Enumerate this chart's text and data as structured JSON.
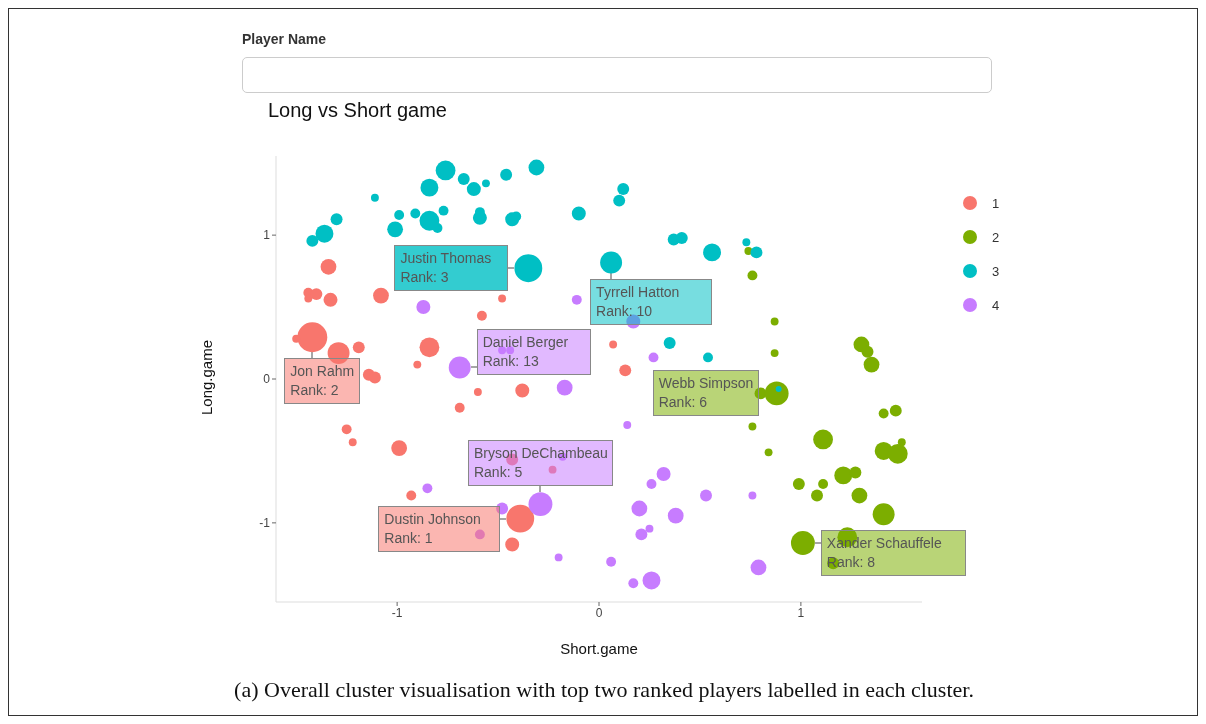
{
  "chart_data": {
    "type": "bubble",
    "title": "Long vs Short game",
    "xlabel": "Short.game",
    "ylabel": "Long.game",
    "xlim": [
      -1.6,
      1.6
    ],
    "ylim": [
      -1.55,
      1.55
    ],
    "xticks": [
      -1,
      0,
      1
    ],
    "yticks": [
      -1,
      0,
      1
    ],
    "legend": "top right",
    "series": [
      {
        "name": "1",
        "color": "#f8766d",
        "x": [
          -1.34,
          -1.44,
          -1.4,
          -1.44,
          -1.33,
          -1.08,
          -0.48,
          -0.58,
          -1.42,
          -1.5,
          -1.29,
          -1.19,
          -0.84,
          -0.9,
          -1.14,
          -1.11,
          0.07,
          0.13,
          -0.38,
          -0.6,
          -0.69,
          -1.25,
          -1.22,
          -0.99,
          -0.93,
          -0.43,
          -0.23,
          -0.39,
          -0.43
        ],
        "values": [
          0.78,
          0.6,
          0.59,
          0.56,
          0.55,
          0.58,
          0.56,
          0.44,
          0.29,
          0.28,
          0.18,
          0.22,
          0.22,
          0.1,
          0.03,
          0.01,
          0.24,
          0.06,
          -0.08,
          -0.09,
          -0.2,
          -0.35,
          -0.44,
          -0.48,
          -0.81,
          -0.56,
          -0.63,
          -0.97,
          -1.15
        ],
        "sizes": [
          0.28,
          0.11,
          0.16,
          0.07,
          0.22,
          0.28,
          0.07,
          0.11,
          1,
          0.07,
          0.54,
          0.16,
          0.44,
          0.07,
          0.16,
          0.16,
          0.07,
          0.16,
          0.22,
          0.07,
          0.11,
          0.11,
          0.07,
          0.28,
          0.11,
          0.16,
          0.07,
          0.87,
          0.22
        ]
      },
      {
        "name": "2",
        "color": "#7cae00",
        "x": [
          0.74,
          0.76,
          0.87,
          0.87,
          1.3,
          1.33,
          1.35,
          0.8,
          0.88,
          0.76,
          0.84,
          1.11,
          1.41,
          1.47,
          1.5,
          1.41,
          1.48,
          1.21,
          1.27,
          0.99,
          1.11,
          1.08,
          1.29,
          1.41,
          1.01,
          1.23,
          1.16
        ],
        "values": [
          0.89,
          0.72,
          0.4,
          0.18,
          0.24,
          0.19,
          0.1,
          -0.1,
          -0.1,
          -0.33,
          -0.51,
          -0.42,
          -0.24,
          -0.22,
          -0.44,
          -0.5,
          -0.52,
          -0.67,
          -0.65,
          -0.73,
          -0.73,
          -0.81,
          -0.81,
          -0.94,
          -1.14,
          -1.1,
          -1.28
        ],
        "sizes": [
          0.07,
          0.11,
          0.07,
          0.07,
          0.28,
          0.16,
          0.28,
          0.16,
          0.64,
          0.07,
          0.07,
          0.44,
          0.11,
          0.16,
          0.07,
          0.36,
          0.44,
          0.36,
          0.16,
          0.16,
          0.11,
          0.16,
          0.28,
          0.54,
          0.64,
          0.44,
          0.16
        ]
      },
      {
        "name": "3",
        "color": "#00bfc4",
        "x": [
          -0.76,
          -0.67,
          -0.62,
          -0.56,
          -0.46,
          -0.31,
          -0.84,
          -1.11,
          -1.3,
          -1.36,
          -1.42,
          -0.99,
          -1.01,
          -0.91,
          -0.84,
          -0.77,
          -0.8,
          -0.59,
          -0.59,
          -0.43,
          -0.41,
          -0.1,
          0.12,
          0.1,
          -0.35,
          0.06,
          0.37,
          0.41,
          0.56,
          0.35,
          0.54,
          0.73,
          0.78,
          0.89
        ],
        "values": [
          1.45,
          1.39,
          1.32,
          1.36,
          1.42,
          1.47,
          1.33,
          1.26,
          1.11,
          1.01,
          0.96,
          1.14,
          1.04,
          1.15,
          1.1,
          1.17,
          1.05,
          1.16,
          1.12,
          1.11,
          1.13,
          1.15,
          1.32,
          1.24,
          0.77,
          0.81,
          0.97,
          0.98,
          0.88,
          0.25,
          0.15,
          0.95,
          0.88,
          -0.07
        ],
        "sizes": [
          0.44,
          0.16,
          0.22,
          0.07,
          0.16,
          0.28,
          0.36,
          0.07,
          0.16,
          0.36,
          0.16,
          0.11,
          0.28,
          0.11,
          0.44,
          0.11,
          0.11,
          0.11,
          0.22,
          0.22,
          0.11,
          0.22,
          0.16,
          0.16,
          0.87,
          0.54,
          0.16,
          0.16,
          0.36,
          0.16,
          0.11,
          0.07,
          0.16,
          0.04
        ]
      },
      {
        "name": "4",
        "color": "#c77cff",
        "x": [
          -0.87,
          -0.69,
          -0.48,
          -0.44,
          -0.11,
          0.17,
          0.27,
          -0.17,
          0.14,
          -0.18,
          0.32,
          0.26,
          -0.48,
          -0.29,
          0.2,
          0.53,
          0.38,
          0.25,
          0.21,
          -0.2,
          0.06,
          0.17,
          0.26,
          -0.85,
          -0.59,
          0.76,
          0.79
        ],
        "values": [
          0.5,
          0.08,
          0.2,
          0.2,
          0.55,
          0.4,
          0.15,
          -0.06,
          -0.32,
          -0.54,
          -0.66,
          -0.73,
          -0.9,
          -0.87,
          -0.9,
          -0.81,
          -0.95,
          -1.04,
          -1.08,
          -1.24,
          -1.27,
          -1.42,
          -1.4,
          -0.76,
          -1.08,
          -0.81,
          -1.31
        ],
        "sizes": [
          0.22,
          0.54,
          0.07,
          0.07,
          0.11,
          0.22,
          0.11,
          0.28,
          0.07,
          0.07,
          0.22,
          0.11,
          0.16,
          0.64,
          0.28,
          0.16,
          0.28,
          0.07,
          0.16,
          0.07,
          0.11,
          0.11,
          0.36,
          0.11,
          0.11,
          0.07,
          0.28
        ]
      }
    ],
    "annotations": [
      "Player Name",
      {
        "text": "Jon Rahm\nRank: 2",
        "x": -1.42,
        "y": 0.29
      },
      {
        "text": "Justin Thomas\nRank: 3",
        "x": -0.35,
        "y": 0.77
      },
      {
        "text": "Tyrrell Hatton\nRank: 10",
        "x": 0.06,
        "y": 0.81
      },
      {
        "text": "Daniel Berger\nRank: 13",
        "x": -0.69,
        "y": 0.08
      },
      {
        "text": "Webb Simpson\nRank: 6",
        "x": 0.88,
        "y": -0.1
      },
      {
        "text": "Dustin Johnson\nRank: 1",
        "x": -0.39,
        "y": -0.97
      },
      {
        "text": "Bryson DeChambeau\nRank: 5",
        "x": -0.29,
        "y": -0.87
      },
      {
        "text": "Xander Schauffele\nRank: 8",
        "x": 1.01,
        "y": -1.14
      },
      "(a) Overall cluster visualisation with top two ranked players labelled in each cluster."
    ]
  }
}
